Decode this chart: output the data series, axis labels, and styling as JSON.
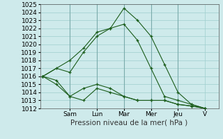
{
  "background_color": "#ceeaeb",
  "grid_color": "#9ecece",
  "line_color": "#1a5c1a",
  "ylim": [
    1012,
    1025
  ],
  "yticks": [
    1012,
    1013,
    1014,
    1015,
    1016,
    1017,
    1018,
    1019,
    1020,
    1021,
    1022,
    1023,
    1024,
    1025
  ],
  "xlabel": "Pression niveau de la mer( hPa )",
  "xlabel_fontsize": 7.5,
  "tick_fontsize": 6.5,
  "day_labels": [
    "Sam",
    "Lun",
    "Mar",
    "Mer",
    "Jeu",
    "V"
  ],
  "day_x": [
    2.0,
    4.0,
    6.0,
    8.0,
    10.0,
    12.0
  ],
  "xlim": [
    -0.2,
    13.0
  ],
  "series": [
    {
      "x": [
        0,
        1,
        2,
        3,
        4,
        5,
        6,
        7,
        8,
        9,
        10,
        11,
        12
      ],
      "y": [
        1016.0,
        1017.0,
        1016.5,
        1019.0,
        1021.0,
        1022.0,
        1024.5,
        1023.0,
        1021.0,
        1017.5,
        1014.0,
        1012.5,
        1012.0
      ]
    },
    {
      "x": [
        0,
        1,
        2,
        3,
        4,
        5,
        6,
        7,
        8,
        9,
        10,
        11,
        12
      ],
      "y": [
        1016.0,
        1015.5,
        1013.5,
        1013.0,
        1014.5,
        1014.0,
        1013.5,
        1013.0,
        1013.0,
        1013.0,
        1012.5,
        1012.3,
        1012.0
      ]
    },
    {
      "x": [
        0,
        1,
        2,
        3,
        4,
        5,
        6,
        7,
        8,
        9,
        10,
        11,
        12
      ],
      "y": [
        1016.0,
        1015.0,
        1013.5,
        1014.5,
        1015.0,
        1014.5,
        1013.5,
        1013.0,
        1013.0,
        1013.0,
        1012.5,
        1012.3,
        1012.0
      ]
    },
    {
      "x": [
        0,
        2,
        3,
        4,
        5,
        6,
        7,
        8,
        9,
        10,
        11,
        12
      ],
      "y": [
        1016.0,
        1018.0,
        1019.5,
        1021.5,
        1022.0,
        1022.5,
        1020.5,
        1017.0,
        1013.5,
        1013.0,
        1012.5,
        1012.0
      ]
    }
  ]
}
